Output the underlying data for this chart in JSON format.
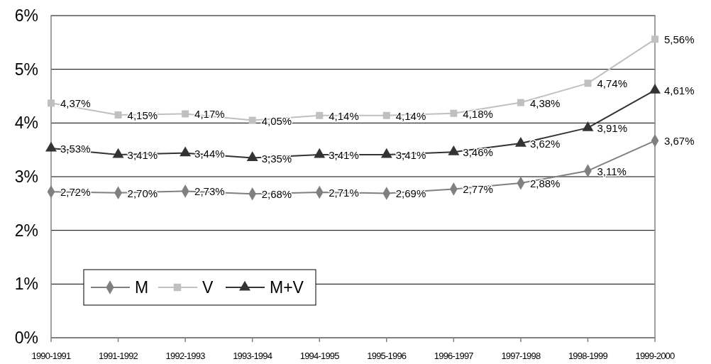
{
  "chart_data": {
    "type": "line",
    "categories": [
      "1990-1991",
      "1991-1992",
      "1992-1993",
      "1993-1994",
      "1994-1995",
      "1995-1996",
      "1996-1997",
      "1997-1998",
      "1998-1999",
      "1999-2000"
    ],
    "series": [
      {
        "name": "M",
        "color": "#808080",
        "marker": "diamond",
        "values": [
          2.72,
          2.7,
          2.73,
          2.68,
          2.71,
          2.69,
          2.77,
          2.88,
          3.11,
          3.67
        ],
        "value_labels": [
          "2,72%",
          "2,70%",
          "2,73%",
          "2,68%",
          "2,71%",
          "2,69%",
          "2,77%",
          "2,88%",
          "3,11%",
          "3,67%"
        ]
      },
      {
        "name": "V",
        "color": "#c0c0c0",
        "marker": "square",
        "values": [
          4.37,
          4.15,
          4.17,
          4.05,
          4.14,
          4.14,
          4.18,
          4.38,
          4.74,
          5.56
        ],
        "value_labels": [
          "4,37%",
          "4,15%",
          "4,17%",
          "4,05%",
          "4,14%",
          "4,14%",
          "4,18%",
          "4,38%",
          "4,74%",
          "5,56%"
        ]
      },
      {
        "name": "M+V",
        "color": "#333333",
        "marker": "triangle",
        "values": [
          3.53,
          3.41,
          3.44,
          3.35,
          3.41,
          3.41,
          3.46,
          3.62,
          3.91,
          4.61
        ],
        "value_labels": [
          "3,53%",
          "3,41%",
          "3,44%",
          "3,35%",
          "3,41%",
          "3,41%",
          "3,46%",
          "3,62%",
          "3,91%",
          "4,61%"
        ]
      }
    ],
    "ylim": [
      0,
      6
    ],
    "yticks": [
      {
        "value": 0,
        "label": "0%"
      },
      {
        "value": 1,
        "label": "1%"
      },
      {
        "value": 2,
        "label": "2%"
      },
      {
        "value": 3,
        "label": "3%"
      },
      {
        "value": 4,
        "label": "4%"
      },
      {
        "value": 5,
        "label": "5%"
      },
      {
        "value": 6,
        "label": "6%"
      }
    ],
    "grid": "y",
    "legend": "bottom left",
    "line_style": "solid"
  }
}
